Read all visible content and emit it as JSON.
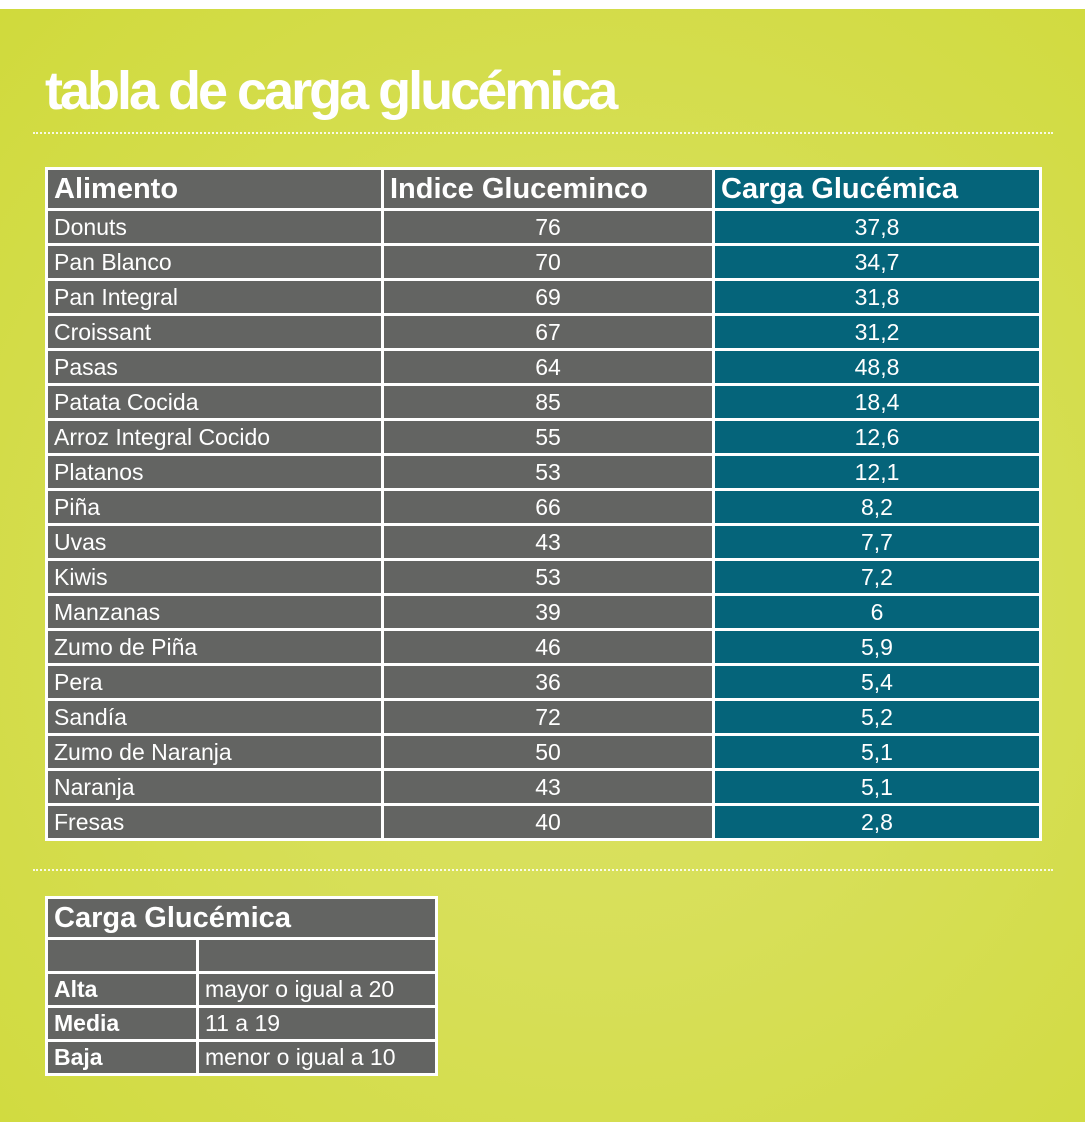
{
  "title": "tabla de carga glucémica",
  "colors": {
    "background": "#d3dc48",
    "gray_cell": "#636462",
    "teal_cell": "#05647a",
    "text": "#ffffff"
  },
  "main_table": {
    "headers": [
      "Alimento",
      "Indice Gluceminco",
      "Carga Glucémica"
    ],
    "rows": [
      {
        "food": "Donuts",
        "ig": "76",
        "cg": "37,8"
      },
      {
        "food": "Pan Blanco",
        "ig": "70",
        "cg": "34,7"
      },
      {
        "food": "Pan Integral",
        "ig": "69",
        "cg": "31,8"
      },
      {
        "food": "Croissant",
        "ig": "67",
        "cg": "31,2"
      },
      {
        "food": "Pasas",
        "ig": "64",
        "cg": "48,8"
      },
      {
        "food": "Patata Cocida",
        "ig": "85",
        "cg": "18,4"
      },
      {
        "food": "Arroz Integral Cocido",
        "ig": "55",
        "cg": "12,6"
      },
      {
        "food": "Platanos",
        "ig": "53",
        "cg": "12,1"
      },
      {
        "food": "Piña",
        "ig": "66",
        "cg": "8,2"
      },
      {
        "food": "Uvas",
        "ig": "43",
        "cg": "7,7"
      },
      {
        "food": "Kiwis",
        "ig": "53",
        "cg": "7,2"
      },
      {
        "food": "Manzanas",
        "ig": "39",
        "cg": "6"
      },
      {
        "food": "Zumo de Piña",
        "ig": "46",
        "cg": "5,9"
      },
      {
        "food": "Pera",
        "ig": "36",
        "cg": "5,4"
      },
      {
        "food": "Sandía",
        "ig": "72",
        "cg": "5,2"
      },
      {
        "food": "Zumo de Naranja",
        "ig": "50",
        "cg": "5,1"
      },
      {
        "food": "Naranja",
        "ig": "43",
        "cg": "5,1"
      },
      {
        "food": "Fresas",
        "ig": "40",
        "cg": "2,8"
      }
    ]
  },
  "legend_table": {
    "header": "Carga Glucémica",
    "rows": [
      {
        "level": "",
        "range": ""
      },
      {
        "level": "Alta",
        "range": "mayor o igual a 20"
      },
      {
        "level": "Media",
        "range": "11 a 19"
      },
      {
        "level": "Baja",
        "range": "menor o igual a 10"
      }
    ]
  }
}
